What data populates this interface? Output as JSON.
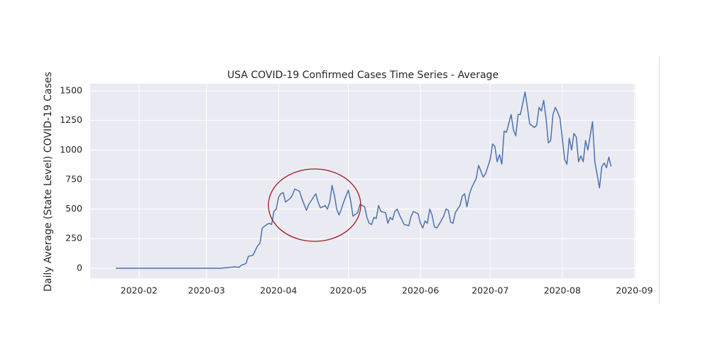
{
  "chart_data": {
    "type": "line",
    "title": "USA COVID-19 Confirmed Cases Time Series - Average",
    "y_label": "Daily Average (State Level) COVID-19 Cases",
    "x": [
      22,
      67,
      70,
      73,
      75,
      76,
      78,
      79,
      81,
      82,
      83,
      84,
      85,
      87,
      88,
      89,
      90,
      91,
      92,
      93,
      94,
      95,
      97,
      98,
      99,
      101,
      102,
      104,
      105,
      107,
      108,
      109,
      110,
      112,
      113,
      114,
      115,
      116,
      117,
      118,
      119,
      120,
      122,
      123,
      124,
      126,
      127,
      129,
      130,
      131,
      132,
      133,
      134,
      135,
      136,
      138,
      139,
      140,
      141,
      142,
      143,
      144,
      145,
      146,
      148,
      149,
      150,
      152,
      153,
      154,
      155,
      156,
      157,
      158,
      159,
      160,
      161,
      163,
      164,
      165,
      166,
      167,
      168,
      170,
      171,
      172,
      173,
      174,
      175,
      177,
      178,
      179,
      180,
      181,
      183,
      184,
      185,
      186,
      187,
      188,
      189,
      190,
      192,
      193,
      194,
      195,
      196,
      198,
      199,
      200,
      202,
      203,
      204,
      205,
      206,
      207,
      208,
      209,
      210,
      211,
      212,
      213,
      214,
      215,
      216,
      217,
      218,
      219,
      220,
      221,
      222,
      223,
      224,
      225,
      227,
      228,
      229,
      230,
      231,
      232,
      233,
      234,
      235
    ],
    "series": [
      {
        "name": "Average",
        "color": "#4c72b0",
        "values": [
          0,
          0,
          5,
          12,
          8,
          25,
          40,
          100,
          110,
          150,
          190,
          210,
          340,
          370,
          380,
          370,
          480,
          500,
          600,
          630,
          640,
          560,
          590,
          620,
          670,
          650,
          590,
          490,
          540,
          600,
          630,
          560,
          510,
          530,
          500,
          560,
          700,
          620,
          500,
          450,
          500,
          560,
          660,
          570,
          440,
          470,
          540,
          520,
          430,
          380,
          370,
          430,
          420,
          530,
          480,
          470,
          380,
          430,
          410,
          480,
          500,
          450,
          410,
          370,
          360,
          440,
          480,
          460,
          380,
          340,
          400,
          380,
          500,
          450,
          350,
          340,
          370,
          440,
          500,
          490,
          390,
          380,
          470,
          530,
          610,
          630,
          520,
          620,
          680,
          760,
          870,
          820,
          770,
          800,
          920,
          1050,
          1030,
          900,
          960,
          880,
          1160,
          1150,
          1300,
          1170,
          1120,
          1300,
          1300,
          1490,
          1360,
          1220,
          1190,
          1210,
          1360,
          1330,
          1420,
          1270,
          1060,
          1080,
          1300,
          1360,
          1320,
          1270,
          1100,
          920,
          880,
          1100,
          1000,
          1140,
          1110,
          900,
          950,
          900,
          1080,
          1000,
          1240,
          900,
          790,
          680,
          860,
          890,
          850,
          940,
          860
        ]
      }
    ],
    "xlim": [
      11,
      245.5
    ],
    "xticks": [
      {
        "value": 32,
        "label": "2020-02"
      },
      {
        "value": 61,
        "label": "2020-03"
      },
      {
        "value": 92,
        "label": "2020-04"
      },
      {
        "value": 122,
        "label": "2020-05"
      },
      {
        "value": 153,
        "label": "2020-06"
      },
      {
        "value": 183,
        "label": "2020-07"
      },
      {
        "value": 214,
        "label": "2020-08"
      },
      {
        "value": 245,
        "label": "2020-09"
      }
    ],
    "ylim": [
      -85,
      1560
    ],
    "yticks": [
      0,
      250,
      500,
      750,
      1000,
      1250,
      1500
    ],
    "grid": true
  }
}
